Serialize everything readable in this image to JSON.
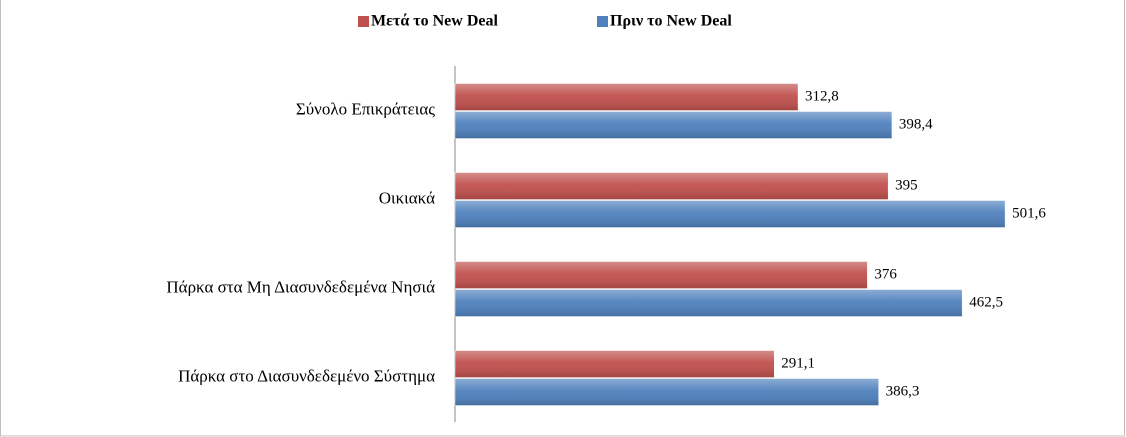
{
  "chart_data": {
    "type": "bar",
    "orientation": "horizontal",
    "categories": [
      "Σύνολο Επικράτειας",
      "Οικιακά",
      "Πάρκα στα Μη Διασυνδεδεμένα Νησιά",
      "Πάρκα στο Διασυνδεδεμένο Σύστημα"
    ],
    "series": [
      {
        "name": "Μετά το New Deal",
        "color": "#c0504d",
        "values": [
          312.8,
          395,
          376,
          291.1
        ],
        "value_labels": [
          "312,8",
          "395",
          "376",
          "291,1"
        ]
      },
      {
        "name": "Πριν το New Deal",
        "color": "#4f81bd",
        "values": [
          398.4,
          501.6,
          462.5,
          386.3
        ],
        "value_labels": [
          "398,4",
          "501,6",
          "462,5",
          "386,3"
        ]
      }
    ],
    "xlim": [
      0,
      600
    ],
    "legend": "top"
  }
}
